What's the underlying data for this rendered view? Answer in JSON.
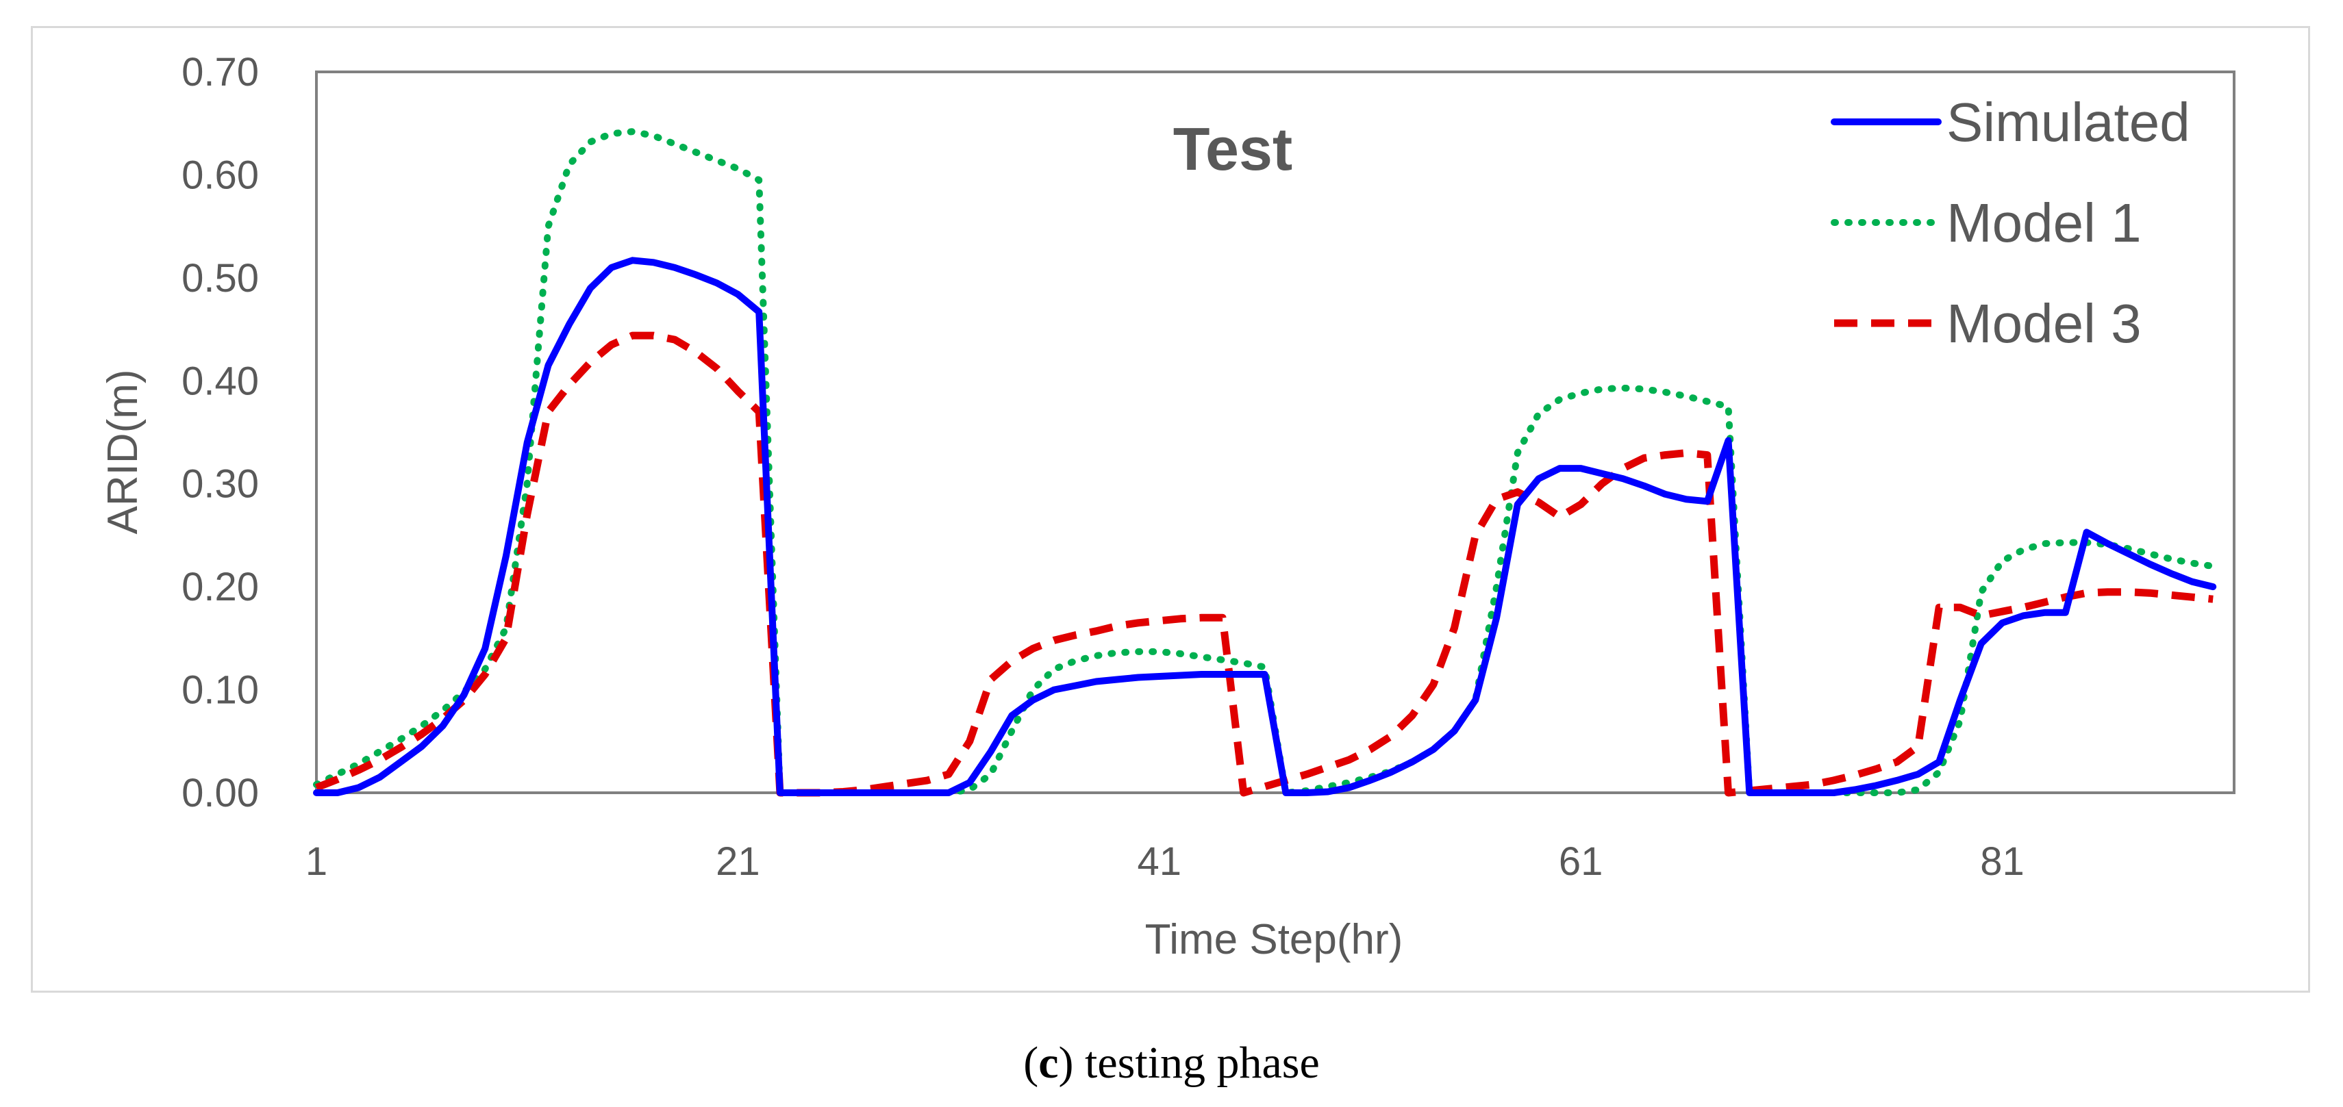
{
  "chart_data": {
    "type": "line",
    "title": "Test",
    "xlabel": "Time Step(hr)",
    "ylabel": "ARID(m)",
    "xlim": [
      1,
      92
    ],
    "ylim": [
      0,
      0.7
    ],
    "x_ticks": [
      "1",
      "21",
      "41",
      "61",
      "81"
    ],
    "y_ticks": [
      "0.00",
      "0.10",
      "0.20",
      "0.30",
      "0.40",
      "0.50",
      "0.60",
      "0.70"
    ],
    "legend_position": "top-right",
    "series": [
      {
        "name": "Simulated",
        "color": "#0000ff",
        "style": "solid",
        "points": [
          [
            1,
            0
          ],
          [
            2,
            0
          ],
          [
            3,
            0.005
          ],
          [
            4,
            0.015
          ],
          [
            5,
            0.03
          ],
          [
            6,
            0.045
          ],
          [
            7,
            0.065
          ],
          [
            8,
            0.095
          ],
          [
            9,
            0.14
          ],
          [
            10,
            0.23
          ],
          [
            11,
            0.34
          ],
          [
            12,
            0.415
          ],
          [
            13,
            0.455
          ],
          [
            14,
            0.49
          ],
          [
            15,
            0.51
          ],
          [
            16,
            0.517
          ],
          [
            17,
            0.515
          ],
          [
            18,
            0.51
          ],
          [
            19,
            0.503
          ],
          [
            20,
            0.495
          ],
          [
            21,
            0.484
          ],
          [
            22,
            0.467
          ],
          [
            23,
            0
          ],
          [
            24,
            0
          ],
          [
            25,
            0
          ],
          [
            26,
            0
          ],
          [
            27,
            0
          ],
          [
            28,
            0
          ],
          [
            29,
            0
          ],
          [
            30,
            0
          ],
          [
            31,
            0
          ],
          [
            32,
            0.01
          ],
          [
            33,
            0.04
          ],
          [
            34,
            0.075
          ],
          [
            35,
            0.09
          ],
          [
            36,
            0.1
          ],
          [
            37,
            0.104
          ],
          [
            38,
            0.108
          ],
          [
            39,
            0.11
          ],
          [
            40,
            0.112
          ],
          [
            41,
            0.113
          ],
          [
            42,
            0.114
          ],
          [
            43,
            0.115
          ],
          [
            44,
            0.115
          ],
          [
            45,
            0.115
          ],
          [
            46,
            0.115
          ],
          [
            47,
            0
          ],
          [
            48,
            0
          ],
          [
            49,
            0.001
          ],
          [
            50,
            0.005
          ],
          [
            51,
            0.012
          ],
          [
            52,
            0.02
          ],
          [
            53,
            0.03
          ],
          [
            54,
            0.042
          ],
          [
            55,
            0.06
          ],
          [
            56,
            0.09
          ],
          [
            57,
            0.17
          ],
          [
            58,
            0.28
          ],
          [
            59,
            0.305
          ],
          [
            60,
            0.315
          ],
          [
            61,
            0.315
          ],
          [
            62,
            0.31
          ],
          [
            63,
            0.305
          ],
          [
            64,
            0.298
          ],
          [
            65,
            0.29
          ],
          [
            66,
            0.285
          ],
          [
            67,
            0.283
          ],
          [
            68,
            0.342
          ],
          [
            69,
            0
          ],
          [
            70,
            0
          ],
          [
            71,
            0
          ],
          [
            72,
            0
          ],
          [
            73,
            0
          ],
          [
            74,
            0.003
          ],
          [
            75,
            0.007
          ],
          [
            76,
            0.012
          ],
          [
            77,
            0.018
          ],
          [
            78,
            0.03
          ],
          [
            79,
            0.09
          ],
          [
            80,
            0.145
          ],
          [
            81,
            0.165
          ],
          [
            82,
            0.172
          ],
          [
            83,
            0.175
          ],
          [
            84,
            0.175
          ],
          [
            85,
            0.253
          ],
          [
            86,
            0.242
          ],
          [
            87,
            0.232
          ],
          [
            88,
            0.222
          ],
          [
            89,
            0.213
          ],
          [
            90,
            0.205
          ],
          [
            91,
            0.2
          ]
        ]
      },
      {
        "name": "Model 1",
        "color": "#00b050",
        "style": "dotted",
        "points": [
          [
            1,
            0.008
          ],
          [
            2,
            0.018
          ],
          [
            3,
            0.028
          ],
          [
            4,
            0.04
          ],
          [
            5,
            0.052
          ],
          [
            6,
            0.065
          ],
          [
            7,
            0.08
          ],
          [
            8,
            0.098
          ],
          [
            9,
            0.12
          ],
          [
            10,
            0.16
          ],
          [
            11,
            0.3
          ],
          [
            12,
            0.55
          ],
          [
            13,
            0.61
          ],
          [
            14,
            0.632
          ],
          [
            15,
            0.64
          ],
          [
            16,
            0.642
          ],
          [
            17,
            0.638
          ],
          [
            18,
            0.63
          ],
          [
            19,
            0.622
          ],
          [
            20,
            0.614
          ],
          [
            21,
            0.606
          ],
          [
            22,
            0.595
          ],
          [
            23,
            0
          ],
          [
            24,
            0
          ],
          [
            25,
            0
          ],
          [
            26,
            0
          ],
          [
            27,
            0
          ],
          [
            28,
            0
          ],
          [
            29,
            0
          ],
          [
            30,
            0
          ],
          [
            31,
            0
          ],
          [
            32,
            0.003
          ],
          [
            33,
            0.018
          ],
          [
            34,
            0.06
          ],
          [
            35,
            0.1
          ],
          [
            36,
            0.12
          ],
          [
            37,
            0.128
          ],
          [
            38,
            0.133
          ],
          [
            39,
            0.136
          ],
          [
            40,
            0.137
          ],
          [
            41,
            0.137
          ],
          [
            42,
            0.135
          ],
          [
            43,
            0.132
          ],
          [
            44,
            0.129
          ],
          [
            45,
            0.126
          ],
          [
            46,
            0.122
          ],
          [
            47,
            0
          ],
          [
            48,
            0.002
          ],
          [
            49,
            0.006
          ],
          [
            50,
            0.01
          ],
          [
            51,
            0.015
          ],
          [
            52,
            0.021
          ],
          [
            53,
            0.03
          ],
          [
            54,
            0.042
          ],
          [
            55,
            0.06
          ],
          [
            56,
            0.09
          ],
          [
            57,
            0.2
          ],
          [
            58,
            0.33
          ],
          [
            59,
            0.368
          ],
          [
            60,
            0.382
          ],
          [
            61,
            0.388
          ],
          [
            62,
            0.392
          ],
          [
            63,
            0.393
          ],
          [
            64,
            0.392
          ],
          [
            65,
            0.389
          ],
          [
            66,
            0.385
          ],
          [
            67,
            0.38
          ],
          [
            68,
            0.375
          ],
          [
            69,
            0
          ],
          [
            70,
            0
          ],
          [
            71,
            0
          ],
          [
            72,
            0
          ],
          [
            73,
            0
          ],
          [
            74,
            0
          ],
          [
            75,
            0
          ],
          [
            76,
            0
          ],
          [
            77,
            0.003
          ],
          [
            78,
            0.02
          ],
          [
            79,
            0.07
          ],
          [
            80,
            0.195
          ],
          [
            81,
            0.225
          ],
          [
            82,
            0.236
          ],
          [
            83,
            0.242
          ],
          [
            84,
            0.243
          ],
          [
            85,
            0.243
          ],
          [
            86,
            0.241
          ],
          [
            87,
            0.237
          ],
          [
            88,
            0.232
          ],
          [
            89,
            0.227
          ],
          [
            90,
            0.223
          ],
          [
            91,
            0.22
          ]
        ]
      },
      {
        "name": "Model 3",
        "color": "#e00000",
        "style": "dashed",
        "points": [
          [
            1,
            0.005
          ],
          [
            2,
            0.013
          ],
          [
            3,
            0.022
          ],
          [
            4,
            0.032
          ],
          [
            5,
            0.044
          ],
          [
            6,
            0.057
          ],
          [
            7,
            0.072
          ],
          [
            8,
            0.09
          ],
          [
            9,
            0.115
          ],
          [
            10,
            0.15
          ],
          [
            11,
            0.27
          ],
          [
            12,
            0.37
          ],
          [
            13,
            0.396
          ],
          [
            14,
            0.418
          ],
          [
            15,
            0.435
          ],
          [
            16,
            0.444
          ],
          [
            17,
            0.444
          ],
          [
            18,
            0.44
          ],
          [
            19,
            0.428
          ],
          [
            20,
            0.412
          ],
          [
            21,
            0.39
          ],
          [
            22,
            0.37
          ],
          [
            23,
            0
          ],
          [
            24,
            0
          ],
          [
            25,
            0
          ],
          [
            26,
            0.001
          ],
          [
            27,
            0.003
          ],
          [
            28,
            0.006
          ],
          [
            29,
            0.009
          ],
          [
            30,
            0.012
          ],
          [
            31,
            0.018
          ],
          [
            32,
            0.05
          ],
          [
            33,
            0.11
          ],
          [
            34,
            0.128
          ],
          [
            35,
            0.14
          ],
          [
            36,
            0.148
          ],
          [
            37,
            0.153
          ],
          [
            38,
            0.157
          ],
          [
            39,
            0.162
          ],
          [
            40,
            0.165
          ],
          [
            41,
            0.167
          ],
          [
            42,
            0.169
          ],
          [
            43,
            0.17
          ],
          [
            44,
            0.17
          ],
          [
            45,
            0
          ],
          [
            46,
            0.006
          ],
          [
            47,
            0.012
          ],
          [
            48,
            0.018
          ],
          [
            49,
            0.025
          ],
          [
            50,
            0.032
          ],
          [
            51,
            0.042
          ],
          [
            52,
            0.055
          ],
          [
            53,
            0.075
          ],
          [
            54,
            0.105
          ],
          [
            55,
            0.16
          ],
          [
            56,
            0.25
          ],
          [
            57,
            0.285
          ],
          [
            58,
            0.292
          ],
          [
            59,
            0.282
          ],
          [
            60,
            0.268
          ],
          [
            61,
            0.28
          ],
          [
            62,
            0.3
          ],
          [
            63,
            0.315
          ],
          [
            64,
            0.325
          ],
          [
            65,
            0.328
          ],
          [
            66,
            0.33
          ],
          [
            67,
            0.328
          ],
          [
            68,
            0
          ],
          [
            69,
            0.002
          ],
          [
            70,
            0.004
          ],
          [
            71,
            0.006
          ],
          [
            72,
            0.008
          ],
          [
            73,
            0.012
          ],
          [
            74,
            0.017
          ],
          [
            75,
            0.023
          ],
          [
            76,
            0.03
          ],
          [
            77,
            0.045
          ],
          [
            78,
            0.18
          ],
          [
            79,
            0.18
          ],
          [
            80,
            0.172
          ],
          [
            81,
            0.176
          ],
          [
            82,
            0.18
          ],
          [
            83,
            0.185
          ],
          [
            84,
            0.19
          ],
          [
            85,
            0.194
          ],
          [
            86,
            0.195
          ],
          [
            87,
            0.195
          ],
          [
            88,
            0.194
          ],
          [
            89,
            0.192
          ],
          [
            90,
            0.19
          ],
          [
            91,
            0.188
          ]
        ]
      }
    ]
  },
  "caption": {
    "label": "c",
    "text": " testing phase"
  }
}
